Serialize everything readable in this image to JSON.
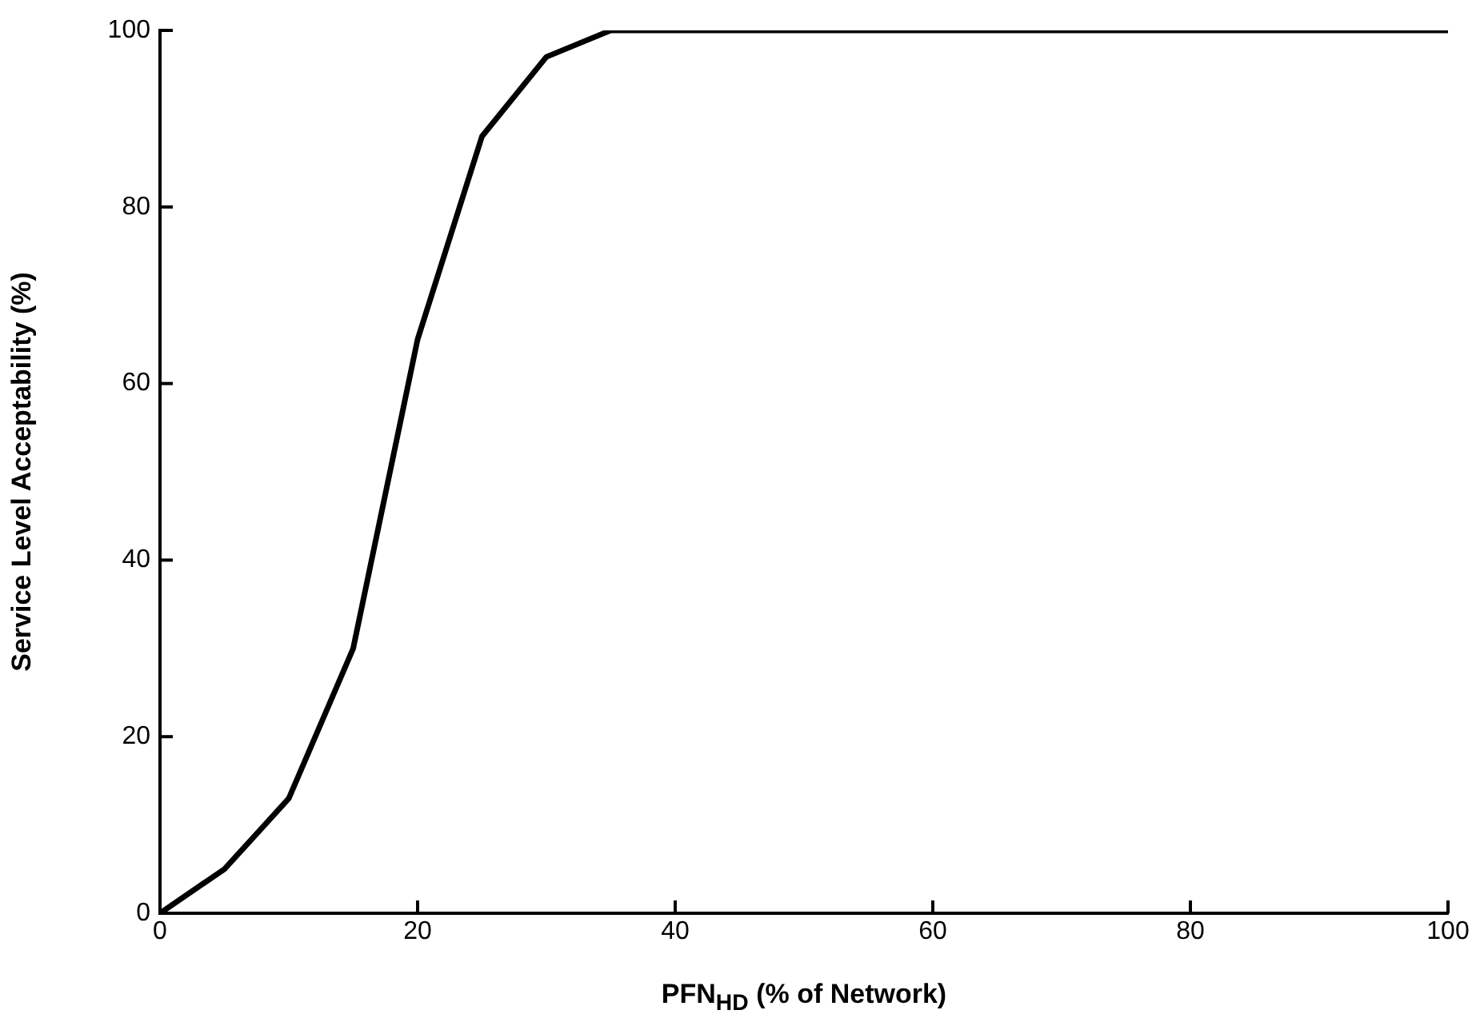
{
  "chart_data": {
    "type": "line",
    "xlabel": "PFN$_{HD}$ (% of Network)",
    "ylabel": "Service Level Acceptability (%)",
    "x": [
      0,
      5,
      10,
      15,
      20,
      25,
      30,
      35,
      100
    ],
    "series": [
      {
        "color": "#000000",
        "values": [
          0,
          5,
          13,
          30,
          65,
          88,
          97,
          100,
          100
        ]
      }
    ],
    "xlim": [
      0,
      100
    ],
    "xticks": [
      0,
      20,
      40,
      60,
      80,
      100
    ],
    "ylim": [
      0,
      100
    ],
    "yticks": [
      0,
      20,
      40,
      60,
      80,
      100
    ],
    "grid": false,
    "legend": false,
    "marker": "none",
    "line_style": "solid"
  }
}
